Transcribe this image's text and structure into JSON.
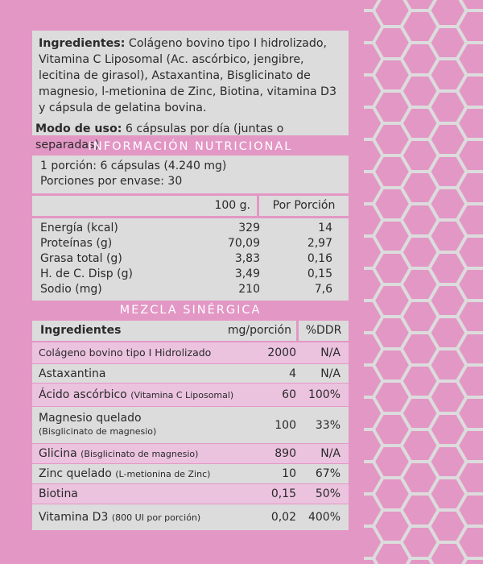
{
  "colors": {
    "background": "#e397c5",
    "panel": "#dcdcdc",
    "row_pink": "#ebc3df",
    "hex_stroke": "#dcdcdc"
  },
  "ingredients": {
    "label": "Ingredientes:",
    "text": " Colágeno bovino tipo I hidrolizado, Vitamina C Liposomal (Ac. ascórbico, jengibre, lecitina de girasol), Astaxantina, Bisglicinato de magnesio, l-metionina de Zinc, Biotina, vitamina D3 y cápsula de gelatina bovina."
  },
  "usage": {
    "label": "Modo de uso:",
    "text": " 6 cápsulas por día (juntas o separadas)"
  },
  "nutrition": {
    "title": "INFORMACIÓN NUTRICIONAL",
    "portion": "1 porción: 6 cápsulas (4.240  mg)",
    "servings": "Porciones por envase: 30",
    "col_100g": "100 g.",
    "col_portion": "Por Porción",
    "rows": [
      {
        "name": "Energía (kcal)",
        "per100": "329",
        "portion": "14"
      },
      {
        "name": "Proteínas (g)",
        "per100": "70,09",
        "portion": "2,97"
      },
      {
        "name": "Grasa total (g)",
        "per100": "3,83",
        "portion": "0,16"
      },
      {
        "name": "H. de C. Disp (g)",
        "per100": "3,49",
        "portion": "0,15"
      },
      {
        "name": "Sodio (mg)",
        "per100": "210",
        "portion": "7,6"
      }
    ]
  },
  "blend": {
    "title": "MEZCLA SINÉRGICA",
    "col_ingredients": "Ingredientes",
    "col_mg": "mg/porción",
    "col_ddr": "%DDR",
    "rows": [
      {
        "name": "Colágeno bovino tipo I Hidrolizado",
        "note": "",
        "mg": "2000",
        "ddr": "N/A"
      },
      {
        "name": "Astaxantina",
        "note": "",
        "mg": "4",
        "ddr": "N/A"
      },
      {
        "name": "Ácido ascórbico",
        "note": "(Vitamina C Liposomal)",
        "mg": "60",
        "ddr": "100%"
      },
      {
        "name": "Magnesio quelado",
        "note": "(Bisglicinato de magnesio)",
        "mg": "100",
        "ddr": "33%"
      },
      {
        "name": "Glicina",
        "note": "(Bisglicinato de magnesio)",
        "mg": "890",
        "ddr": "N/A"
      },
      {
        "name": "Zinc quelado",
        "note": "(L-metionina de Zinc)",
        "mg": "10",
        "ddr": "67%"
      },
      {
        "name": "Biotina",
        "note": "",
        "mg": "0,15",
        "ddr": "50%"
      },
      {
        "name": "Vitamina D3",
        "note": "(800 UI por porción)",
        "mg": "0,02",
        "ddr": "400%"
      }
    ]
  }
}
